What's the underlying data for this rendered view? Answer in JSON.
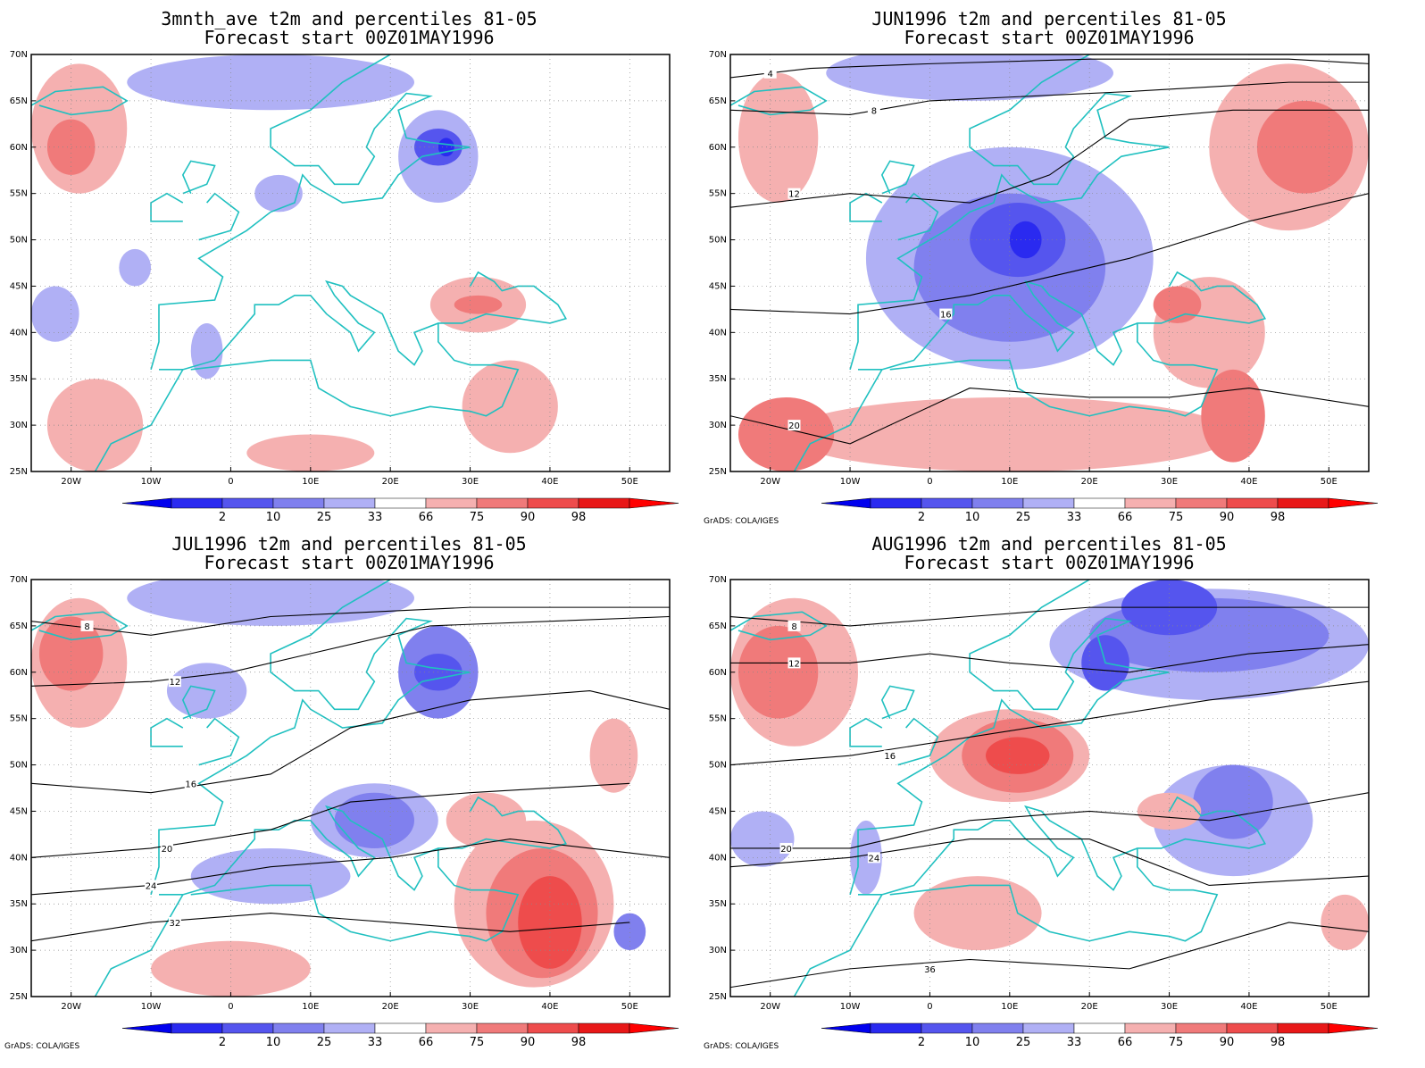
{
  "credit": "GrADS: COLA/IGES",
  "colors": {
    "b2": "#2a2af0",
    "b10": "#5555ee",
    "b25": "#8080ee",
    "b33": "#b0b0f5",
    "r66": "#f5b0b0",
    "r75": "#f07a7a",
    "r90": "#ee4c4c",
    "r98": "#e81818",
    "coast": "#20c0c0",
    "contour": "#000000"
  },
  "colorbar": {
    "labels": [
      "2",
      "10",
      "25",
      "33",
      "66",
      "75",
      "90",
      "98"
    ]
  },
  "axes": {
    "lat_labels": [
      "70N",
      "65N",
      "60N",
      "55N",
      "50N",
      "45N",
      "40N",
      "35N",
      "30N",
      "25N"
    ],
    "lon_labels": [
      "20W",
      "10W",
      "0",
      "10E",
      "20E",
      "30E",
      "40E",
      "50E"
    ]
  },
  "panels": [
    {
      "id": "ave",
      "title_line1": "3mnth_ave t2m and percentiles 81-05",
      "title_line2": "Forecast start 00Z01MAY1996",
      "show_credit": false,
      "blobs": [
        {
          "c": "r66",
          "lon": -19,
          "lat": 62,
          "rx": 6,
          "ry": 7
        },
        {
          "c": "r75",
          "lon": -20,
          "lat": 60,
          "rx": 3,
          "ry": 3
        },
        {
          "c": "b33",
          "lon": 5,
          "lat": 67,
          "rx": 18,
          "ry": 3
        },
        {
          "c": "b33",
          "lon": 26,
          "lat": 59,
          "rx": 5,
          "ry": 5
        },
        {
          "c": "b10",
          "lon": 26,
          "lat": 60,
          "rx": 3,
          "ry": 2
        },
        {
          "c": "b2",
          "lon": 27,
          "lat": 60,
          "rx": 1,
          "ry": 1
        },
        {
          "c": "r66",
          "lon": 31,
          "lat": 43,
          "rx": 6,
          "ry": 3
        },
        {
          "c": "r75",
          "lon": 31,
          "lat": 43,
          "rx": 3,
          "ry": 1
        },
        {
          "c": "r66",
          "lon": 35,
          "lat": 32,
          "rx": 6,
          "ry": 5
        },
        {
          "c": "r66",
          "lon": -17,
          "lat": 30,
          "rx": 6,
          "ry": 5
        },
        {
          "c": "r66",
          "lon": 10,
          "lat": 27,
          "rx": 8,
          "ry": 2
        },
        {
          "c": "b33",
          "lon": -22,
          "lat": 42,
          "rx": 3,
          "ry": 3
        },
        {
          "c": "b33",
          "lon": -3,
          "lat": 38,
          "rx": 2,
          "ry": 3
        },
        {
          "c": "b33",
          "lon": -12,
          "lat": 47,
          "rx": 2,
          "ry": 2
        },
        {
          "c": "b33",
          "lon": 6,
          "lat": 55,
          "rx": 3,
          "ry": 2
        }
      ],
      "contours": []
    },
    {
      "id": "jun",
      "title_line1": "JUN1996 t2m and percentiles 81-05",
      "title_line2": "Forecast start 00Z01MAY1996",
      "show_credit": true,
      "blobs": [
        {
          "c": "b33",
          "lon": 10,
          "lat": 48,
          "rx": 18,
          "ry": 12
        },
        {
          "c": "b25",
          "lon": 10,
          "lat": 47,
          "rx": 12,
          "ry": 8
        },
        {
          "c": "b10",
          "lon": 11,
          "lat": 50,
          "rx": 6,
          "ry": 4
        },
        {
          "c": "b2",
          "lon": 12,
          "lat": 50,
          "rx": 2,
          "ry": 2
        },
        {
          "c": "b33",
          "lon": 5,
          "lat": 68,
          "rx": 18,
          "ry": 3
        },
        {
          "c": "r66",
          "lon": 45,
          "lat": 60,
          "rx": 10,
          "ry": 9
        },
        {
          "c": "r75",
          "lon": 47,
          "lat": 60,
          "rx": 6,
          "ry": 5
        },
        {
          "c": "r66",
          "lon": 35,
          "lat": 40,
          "rx": 7,
          "ry": 6
        },
        {
          "c": "r75",
          "lon": 31,
          "lat": 43,
          "rx": 3,
          "ry": 2
        },
        {
          "c": "r66",
          "lon": -19,
          "lat": 61,
          "rx": 5,
          "ry": 7
        },
        {
          "c": "r66",
          "lon": 10,
          "lat": 29,
          "rx": 28,
          "ry": 4
        },
        {
          "c": "r75",
          "lon": -18,
          "lat": 29,
          "rx": 6,
          "ry": 4
        },
        {
          "c": "r75",
          "lon": 38,
          "lat": 31,
          "rx": 4,
          "ry": 5
        }
      ],
      "contours": [
        {
          "label": "4",
          "lon": -20,
          "lat": 68,
          "path": [
            [
              -25,
              67.5
            ],
            [
              -15,
              68.5
            ],
            [
              0,
              69
            ],
            [
              20,
              69.5
            ],
            [
              45,
              69.5
            ],
            [
              55,
              69
            ]
          ]
        },
        {
          "label": "8",
          "lon": -7,
          "lat": 64,
          "path": [
            [
              -25,
              64
            ],
            [
              -10,
              63.5
            ],
            [
              0,
              65
            ],
            [
              25,
              66
            ],
            [
              45,
              67
            ],
            [
              55,
              67
            ]
          ]
        },
        {
          "label": "12",
          "lon": -17,
          "lat": 55,
          "path": [
            [
              -25,
              53.5
            ],
            [
              -10,
              55
            ],
            [
              5,
              54
            ],
            [
              15,
              57
            ],
            [
              25,
              63
            ],
            [
              38,
              64
            ],
            [
              55,
              64
            ]
          ]
        },
        {
          "label": "16",
          "lon": 2,
          "lat": 42,
          "path": [
            [
              -25,
              42.5
            ],
            [
              -10,
              42
            ],
            [
              5,
              44
            ],
            [
              15,
              46
            ],
            [
              25,
              48
            ],
            [
              40,
              52
            ],
            [
              55,
              55
            ]
          ]
        },
        {
          "label": "20",
          "lon": -17,
          "lat": 30,
          "path": [
            [
              -25,
              31
            ],
            [
              -10,
              28
            ],
            [
              5,
              34
            ],
            [
              20,
              33
            ],
            [
              30,
              33
            ],
            [
              40,
              34
            ],
            [
              55,
              32
            ]
          ]
        }
      ]
    },
    {
      "id": "jul",
      "title_line1": "JUL1996 t2m and percentiles 81-05",
      "title_line2": "Forecast start 00Z01MAY1996",
      "show_credit": true,
      "blobs": [
        {
          "c": "r66",
          "lon": -19,
          "lat": 61,
          "rx": 6,
          "ry": 7
        },
        {
          "c": "r75",
          "lon": -20,
          "lat": 62,
          "rx": 4,
          "ry": 4
        },
        {
          "c": "b33",
          "lon": 5,
          "lat": 68,
          "rx": 18,
          "ry": 3
        },
        {
          "c": "b25",
          "lon": 26,
          "lat": 60,
          "rx": 5,
          "ry": 5
        },
        {
          "c": "b10",
          "lon": 26,
          "lat": 60,
          "rx": 3,
          "ry": 2
        },
        {
          "c": "r66",
          "lon": 38,
          "lat": 35,
          "rx": 10,
          "ry": 9
        },
        {
          "c": "r75",
          "lon": 39,
          "lat": 34,
          "rx": 7,
          "ry": 7
        },
        {
          "c": "r90",
          "lon": 40,
          "lat": 33,
          "rx": 4,
          "ry": 5
        },
        {
          "c": "r66",
          "lon": 32,
          "lat": 44,
          "rx": 5,
          "ry": 3
        },
        {
          "c": "b33",
          "lon": 18,
          "lat": 44,
          "rx": 8,
          "ry": 4
        },
        {
          "c": "b25",
          "lon": 18,
          "lat": 44,
          "rx": 5,
          "ry": 3
        },
        {
          "c": "r66",
          "lon": 0,
          "lat": 28,
          "rx": 10,
          "ry": 3
        },
        {
          "c": "b33",
          "lon": 5,
          "lat": 38,
          "rx": 10,
          "ry": 3
        },
        {
          "c": "b33",
          "lon": -3,
          "lat": 58,
          "rx": 5,
          "ry": 3
        },
        {
          "c": "b25",
          "lon": 50,
          "lat": 32,
          "rx": 2,
          "ry": 2
        },
        {
          "c": "r66",
          "lon": 48,
          "lat": 51,
          "rx": 3,
          "ry": 4
        }
      ],
      "contours": [
        {
          "label": "8",
          "lon": -18,
          "lat": 65,
          "path": [
            [
              -25,
              65.5
            ],
            [
              -10,
              64
            ],
            [
              5,
              66
            ],
            [
              30,
              67
            ],
            [
              55,
              67
            ]
          ]
        },
        {
          "label": "12",
          "lon": -7,
          "lat": 59,
          "path": [
            [
              -25,
              58.5
            ],
            [
              -10,
              59
            ],
            [
              0,
              60
            ],
            [
              10,
              62
            ],
            [
              25,
              65
            ],
            [
              55,
              66
            ]
          ]
        },
        {
          "label": "16",
          "lon": -5,
          "lat": 48,
          "path": [
            [
              -25,
              48
            ],
            [
              -10,
              47
            ],
            [
              5,
              49
            ],
            [
              15,
              54
            ],
            [
              30,
              57
            ],
            [
              45,
              58
            ],
            [
              55,
              56
            ]
          ]
        },
        {
          "label": "20",
          "lon": -8,
          "lat": 41,
          "path": [
            [
              -25,
              40
            ],
            [
              -10,
              41
            ],
            [
              5,
              43
            ],
            [
              15,
              46
            ],
            [
              30,
              47
            ],
            [
              50,
              48
            ]
          ]
        },
        {
          "label": "24",
          "lon": -10,
          "lat": 37,
          "path": [
            [
              -25,
              36
            ],
            [
              -10,
              37
            ],
            [
              5,
              39
            ],
            [
              20,
              40
            ],
            [
              35,
              42
            ],
            [
              55,
              40
            ]
          ]
        },
        {
          "label": "32",
          "lon": -7,
          "lat": 33,
          "path": [
            [
              -25,
              31
            ],
            [
              -10,
              33
            ],
            [
              5,
              34
            ],
            [
              20,
              33
            ],
            [
              35,
              32
            ],
            [
              50,
              33
            ]
          ]
        }
      ]
    },
    {
      "id": "aug",
      "title_line1": "AUG1996 t2m and percentiles 81-05",
      "title_line2": "Forecast start 00Z01MAY1996",
      "show_credit": true,
      "blobs": [
        {
          "c": "r66",
          "lon": -17,
          "lat": 60,
          "rx": 8,
          "ry": 8
        },
        {
          "c": "r75",
          "lon": -19,
          "lat": 60,
          "rx": 5,
          "ry": 5
        },
        {
          "c": "b33",
          "lon": 35,
          "lat": 63,
          "rx": 20,
          "ry": 6
        },
        {
          "c": "b25",
          "lon": 35,
          "lat": 64,
          "rx": 15,
          "ry": 4
        },
        {
          "c": "b10",
          "lon": 30,
          "lat": 67,
          "rx": 6,
          "ry": 3
        },
        {
          "c": "b10",
          "lon": 22,
          "lat": 61,
          "rx": 3,
          "ry": 3
        },
        {
          "c": "r66",
          "lon": 10,
          "lat": 51,
          "rx": 10,
          "ry": 5
        },
        {
          "c": "r75",
          "lon": 11,
          "lat": 51,
          "rx": 7,
          "ry": 4
        },
        {
          "c": "r90",
          "lon": 11,
          "lat": 51,
          "rx": 4,
          "ry": 2
        },
        {
          "c": "b33",
          "lon": 38,
          "lat": 44,
          "rx": 10,
          "ry": 6
        },
        {
          "c": "b25",
          "lon": 38,
          "lat": 46,
          "rx": 5,
          "ry": 4
        },
        {
          "c": "r66",
          "lon": 6,
          "lat": 34,
          "rx": 8,
          "ry": 4
        },
        {
          "c": "r66",
          "lon": 30,
          "lat": 45,
          "rx": 4,
          "ry": 2
        },
        {
          "c": "b33",
          "lon": -21,
          "lat": 42,
          "rx": 4,
          "ry": 3
        },
        {
          "c": "b33",
          "lon": -8,
          "lat": 40,
          "rx": 2,
          "ry": 4
        },
        {
          "c": "r66",
          "lon": 52,
          "lat": 33,
          "rx": 3,
          "ry": 3
        }
      ],
      "contours": [
        {
          "label": "8",
          "lon": -17,
          "lat": 65,
          "path": [
            [
              -25,
              66
            ],
            [
              -10,
              65
            ],
            [
              5,
              66
            ],
            [
              20,
              67
            ],
            [
              40,
              67
            ],
            [
              55,
              67
            ]
          ]
        },
        {
          "label": "12",
          "lon": -17,
          "lat": 61,
          "path": [
            [
              -25,
              61
            ],
            [
              -10,
              61
            ],
            [
              0,
              62
            ],
            [
              10,
              61
            ],
            [
              25,
              60
            ],
            [
              40,
              62
            ],
            [
              55,
              63
            ]
          ]
        },
        {
          "label": "16",
          "lon": -5,
          "lat": 51,
          "path": [
            [
              -25,
              50
            ],
            [
              -10,
              51
            ],
            [
              5,
              53
            ],
            [
              20,
              55
            ],
            [
              35,
              57
            ],
            [
              55,
              59
            ]
          ]
        },
        {
          "label": "20",
          "lon": -18,
          "lat": 41,
          "path": [
            [
              -25,
              41
            ],
            [
              -10,
              41
            ],
            [
              5,
              44
            ],
            [
              20,
              45
            ],
            [
              35,
              44
            ],
            [
              55,
              47
            ]
          ]
        },
        {
          "label": "24",
          "lon": -7,
          "lat": 40,
          "path": [
            [
              -25,
              39
            ],
            [
              -10,
              40
            ],
            [
              5,
              42
            ],
            [
              20,
              42
            ],
            [
              35,
              37
            ],
            [
              55,
              38
            ]
          ]
        },
        {
          "label": "36",
          "lon": 0,
          "lat": 28,
          "path": [
            [
              -25,
              26
            ],
            [
              -10,
              28
            ],
            [
              5,
              29
            ],
            [
              25,
              28
            ],
            [
              45,
              33
            ],
            [
              55,
              32
            ]
          ]
        }
      ]
    }
  ]
}
